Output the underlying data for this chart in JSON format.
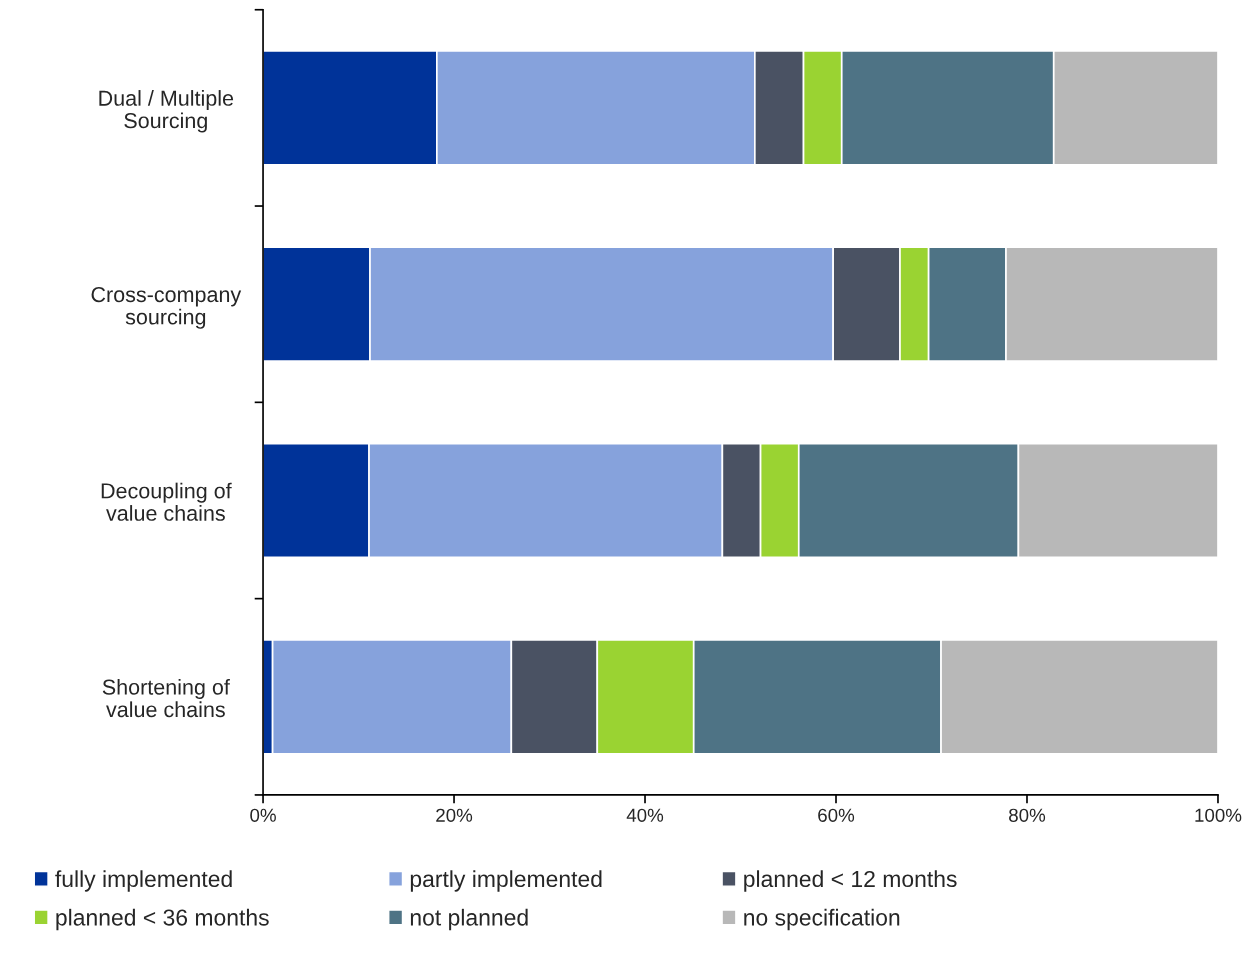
{
  "chart_data": {
    "type": "bar",
    "orientation": "horizontal",
    "stacked": true,
    "categories": [
      "Dual / Multiple\nSourcing",
      "Cross-company\nsourcing",
      "Decoupling of\nvalue chains",
      "Shortening of\nvalue chains"
    ],
    "series": [
      {
        "name": "fully implemented",
        "color": "#003399",
        "values": [
          18.2,
          11.2,
          11.1,
          1.0
        ]
      },
      {
        "name": "partly implemented",
        "color": "#86a2dc",
        "values": [
          33.3,
          48.5,
          37.0,
          25.0
        ]
      },
      {
        "name": "planned < 12 months",
        "color": "#4a5263",
        "values": [
          5.1,
          7.0,
          4.0,
          9.0
        ]
      },
      {
        "name": "planned < 36 months",
        "color": "#9ad332",
        "values": [
          4.0,
          3.0,
          4.0,
          10.1
        ]
      },
      {
        "name": "not planned",
        "color": "#4e7385",
        "values": [
          22.2,
          8.1,
          23.0,
          25.9
        ]
      },
      {
        "name": "no specification",
        "color": "#b8b8b8",
        "values": [
          17.2,
          22.2,
          20.9,
          29.0
        ]
      }
    ],
    "xlim": [
      0,
      100
    ],
    "xticks": [
      {
        "value": 0,
        "label": "0%"
      },
      {
        "value": 20,
        "label": "20%"
      },
      {
        "value": 40,
        "label": "40%"
      },
      {
        "value": 60,
        "label": "60%"
      },
      {
        "value": 80,
        "label": "80%"
      },
      {
        "value": 100,
        "label": "100%"
      }
    ],
    "grid": false,
    "legend": "bottom"
  }
}
